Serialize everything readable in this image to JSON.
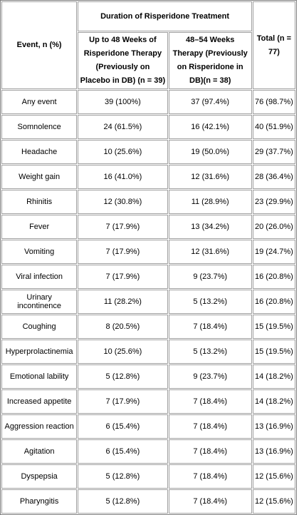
{
  "table": {
    "header": {
      "event": "Event, n (%)",
      "group": "Duration of Risperidone Treatment",
      "columns": [
        "Up to 48 Weeks of Risperidone Therapy (Previously on Placebo in DB) (n = 39)",
        "48–54 Weeks Therapy (Previously on Risperidone in DB)(n = 38)"
      ],
      "total": "Total (n = 77)"
    },
    "rows": [
      [
        "Any event",
        "39 (100%)",
        "37 (97.4%)",
        "76 (98.7%)"
      ],
      [
        "Somnolence",
        "24 (61.5%)",
        "16 (42.1%)",
        "40 (51.9%)"
      ],
      [
        "Headache",
        "10 (25.6%)",
        "19 (50.0%)",
        "29 (37.7%)"
      ],
      [
        "Weight gain",
        "16 (41.0%)",
        "12 (31.6%)",
        "28 (36.4%)"
      ],
      [
        "Rhinitis",
        "12 (30.8%)",
        "11 (28.9%)",
        "23 (29.9%)"
      ],
      [
        "Fever",
        "7 (17.9%)",
        "13 (34.2%)",
        "20 (26.0%)"
      ],
      [
        "Vomiting",
        "7 (17.9%)",
        "12 (31.6%)",
        "19 (24.7%)"
      ],
      [
        "Viral infection",
        "7 (17.9%)",
        "9 (23.7%)",
        "16 (20.8%)"
      ],
      [
        "Urinary incontinence",
        "11 (28.2%)",
        "5 (13.2%)",
        "16 (20.8%)"
      ],
      [
        "Coughing",
        "8 (20.5%)",
        "7 (18.4%)",
        "15 (19.5%)"
      ],
      [
        "Hyperprolactinemia",
        "10 (25.6%)",
        "5 (13.2%)",
        "15 (19.5%)"
      ],
      [
        "Emotional lability",
        "5 (12.8%)",
        "9 (23.7%)",
        "14 (18.2%)"
      ],
      [
        "Increased appetite",
        "7 (17.9%)",
        "7 (18.4%)",
        "14 (18.2%)"
      ],
      [
        "Aggression reaction",
        "6 (15.4%)",
        "7 (18.4%)",
        "13 (16.9%)"
      ],
      [
        "Agitation",
        "6 (15.4%)",
        "7 (18.4%)",
        "13 (16.9%)"
      ],
      [
        "Dyspepsia",
        "5 (12.8%)",
        "7 (18.4%)",
        "12 (15.6%)"
      ],
      [
        "Pharyngitis",
        "5 (12.8%)",
        "7 (18.4%)",
        "12 (15.6%)"
      ]
    ]
  }
}
